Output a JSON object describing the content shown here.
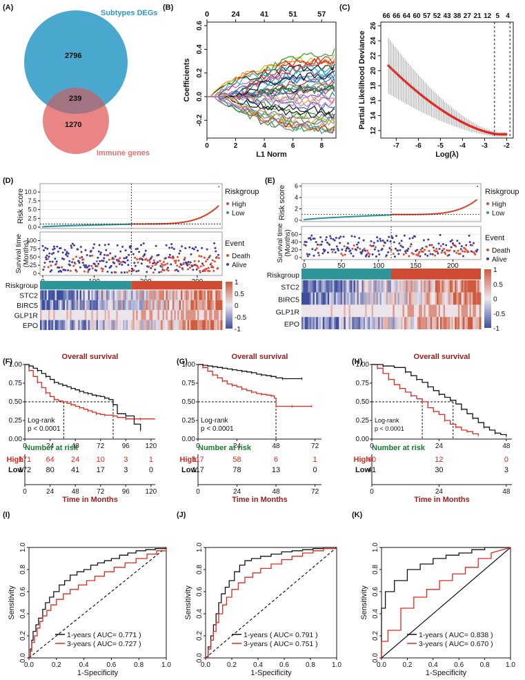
{
  "panel_letters": [
    "(A)",
    "(B)",
    "(C)",
    "(D)",
    "(E)",
    "(F)",
    "(G)",
    "(H)",
    "(I)",
    "(J)",
    "(K)"
  ],
  "venn": {
    "top_label": "Subtypes DEGs",
    "bottom_label": "Immune genes",
    "top_only": "2796",
    "overlap": "239",
    "bottom_only": "1270",
    "top_color": "#4aa8cf",
    "bottom_color": "#e98584",
    "overlap_color": "#a27380"
  },
  "colors": {
    "high": "#d14b33",
    "low": "#2e9599",
    "high_km": "#e0271f",
    "low_km": "#111111",
    "heading": "#9e1b1b",
    "risk_heading": "#1a7a2e",
    "death": "#e04a2f",
    "alive": "#3d3da0",
    "heat_high": "#cf5a3c",
    "heat_low": "#3e4f9e",
    "heat_mid": "#ece8ef",
    "ci": "#a6a6a6",
    "lambda_pt": "#e0271f"
  },
  "chart_data": [
    {
      "panel": "B",
      "type": "line",
      "title": "",
      "xlabel": "L1 Norm",
      "ylabel": "Coefficients",
      "xlim": [
        0,
        9
      ],
      "ylim": [
        -0.35,
        0.63
      ],
      "x_ticks": [
        "0",
        "2",
        "4",
        "6",
        "8"
      ],
      "y_ticks": [
        "-0.2",
        "0.0",
        "0.2",
        "0.4",
        "0.6"
      ],
      "top_ticks": [
        "0",
        "24",
        "41",
        "51",
        "57"
      ],
      "note": "LASSO coefficient paths (approximate, many variables)"
    },
    {
      "panel": "C",
      "type": "line",
      "xlabel": "Log(λ)",
      "ylabel": "Partial Likelihood Deviance",
      "xlim": [
        -7.7,
        -1.7
      ],
      "ylim": [
        11,
        26.5
      ],
      "x_ticks": [
        "-7",
        "-6",
        "-5",
        "-4",
        "-3",
        "-2"
      ],
      "y_ticks": [
        "12",
        "14",
        "16",
        "18",
        "20",
        "22",
        "24",
        "26"
      ],
      "top_ticks": [
        "66",
        "66",
        "64",
        "60",
        "57",
        "52",
        "43",
        "38",
        "27",
        "21",
        "12",
        "5",
        "4"
      ],
      "vlines": [
        -2.55,
        -1.85
      ],
      "note": "Cross-validation deviance with error bars (approximate)"
    },
    {
      "panel": "D",
      "type": "scatter",
      "risk_ylabel": "Risk score",
      "risk_yticks": [
        "0.0",
        "2.5",
        "5.0",
        "7.5",
        "10.0"
      ],
      "risk_ylim": [
        0,
        12
      ],
      "surv_ylabel": [
        "Survival time",
        "(Months)"
      ],
      "surv_yticks": [
        "0",
        "25",
        "50",
        "75",
        "100"
      ],
      "surv_ylim": [
        0,
        120
      ],
      "x_ticks": [
        "0",
        "100",
        "200",
        "300"
      ],
      "n": 343,
      "cutoff_index": 172,
      "cutoff_value": 0.9,
      "legend_risk_title": "Riskgroup",
      "legend_risk": [
        "High",
        "Low"
      ],
      "legend_event_title": "Event",
      "legend_event": [
        "Death",
        "Alive"
      ],
      "heatmap_rows": [
        "Riskgroup",
        "STC2",
        "BIRC5",
        "GLP1R",
        "EPO"
      ],
      "heat_scale": [
        "1",
        "0.5",
        "0",
        "-0.5",
        "-1"
      ]
    },
    {
      "panel": "E",
      "type": "scatter",
      "risk_ylabel": "Risk score",
      "risk_yticks": [
        "0",
        "2",
        "4",
        "6"
      ],
      "risk_ylim": [
        0,
        6.2
      ],
      "surv_ylabel": [
        "Survival time",
        "(Months)"
      ],
      "surv_yticks": [
        "0",
        "20",
        "40",
        "60"
      ],
      "surv_ylim": [
        0,
        75
      ],
      "x_ticks": [
        "0",
        "50",
        "100",
        "150",
        "200"
      ],
      "n": 234,
      "cutoff_index": 117,
      "cutoff_value": 1.0,
      "legend_risk_title": "Riskgroup",
      "legend_risk": [
        "High",
        "Low"
      ],
      "legend_event_title": "Event",
      "legend_event": [
        "Death",
        "Alive"
      ],
      "heatmap_rows": [
        "Riskgroup",
        "STC2",
        "BIRC5",
        "GLP1R",
        "EPO"
      ],
      "heat_scale": [
        "1",
        "0.5",
        "0",
        "-0.5",
        "-1"
      ]
    },
    {
      "panel": "F",
      "type": "line",
      "title": "Overall survival",
      "xlabel": "Time in Months",
      "xlim": [
        0,
        124
      ],
      "ylim": [
        0,
        1
      ],
      "x_ticks": [
        "0",
        "24",
        "48",
        "72",
        "96",
        "120"
      ],
      "y_ticks": [
        "0.00",
        "0.25",
        "0.50",
        "0.75",
        "1.00"
      ],
      "logrank": [
        "Log-rank",
        "p < 0.0001"
      ],
      "median_high": 37,
      "median_low": 84,
      "series": [
        {
          "name": "High",
          "x": [
            0,
            4,
            8,
            12,
            16,
            20,
            24,
            28,
            32,
            36,
            40,
            44,
            48,
            52,
            56,
            60,
            64,
            68,
            72,
            76,
            80,
            84,
            88,
            96,
            104,
            110,
            124
          ],
          "values": [
            1,
            0.92,
            0.84,
            0.76,
            0.69,
            0.62,
            0.57,
            0.53,
            0.51,
            0.5,
            0.48,
            0.46,
            0.44,
            0.42,
            0.4,
            0.38,
            0.36,
            0.34,
            0.33,
            0.32,
            0.32,
            0.31,
            0.29,
            0.27,
            0.27,
            0.27,
            0.27
          ]
        },
        {
          "name": "Low",
          "x": [
            0,
            4,
            8,
            12,
            16,
            20,
            24,
            28,
            32,
            36,
            40,
            44,
            48,
            52,
            56,
            60,
            64,
            68,
            72,
            76,
            80,
            84,
            88,
            96,
            104,
            110
          ],
          "values": [
            1,
            0.98,
            0.95,
            0.92,
            0.88,
            0.84,
            0.8,
            0.76,
            0.74,
            0.72,
            0.7,
            0.68,
            0.66,
            0.64,
            0.62,
            0.61,
            0.59,
            0.58,
            0.57,
            0.55,
            0.53,
            0.46,
            0.34,
            0.31,
            0.2,
            0.12
          ]
        }
      ],
      "risk_table_title": "Number at risk",
      "risk_table": {
        "High": [
          "171",
          "64",
          "24",
          "10",
          "3",
          "1"
        ],
        "Low": [
          "172",
          "80",
          "41",
          "17",
          "3",
          "0"
        ]
      }
    },
    {
      "panel": "G",
      "type": "line",
      "title": "Overall survival",
      "xlabel": "Time in Months",
      "xlim": [
        0,
        76
      ],
      "ylim": [
        0,
        1
      ],
      "x_ticks": [
        "0",
        "24",
        "48",
        "72"
      ],
      "y_ticks": [
        "0.00",
        "0.25",
        "0.50",
        "0.75",
        "1.00"
      ],
      "logrank": [
        "Log-rank",
        "p < 0.0001"
      ],
      "median_high": 48,
      "series": [
        {
          "name": "High",
          "x": [
            0,
            3,
            6,
            9,
            12,
            15,
            18,
            21,
            24,
            27,
            30,
            33,
            36,
            39,
            42,
            45,
            47,
            48,
            52,
            58,
            64,
            70
          ],
          "values": [
            1,
            0.96,
            0.91,
            0.86,
            0.82,
            0.78,
            0.74,
            0.72,
            0.7,
            0.67,
            0.65,
            0.63,
            0.61,
            0.6,
            0.59,
            0.58,
            0.55,
            0.44,
            0.44,
            0.44,
            0.44,
            0.44
          ]
        },
        {
          "name": "Low",
          "x": [
            0,
            3,
            6,
            9,
            12,
            15,
            18,
            21,
            24,
            27,
            30,
            33,
            36,
            39,
            42,
            45,
            48,
            52,
            58,
            64
          ],
          "values": [
            1,
            0.99,
            0.98,
            0.97,
            0.96,
            0.95,
            0.94,
            0.93,
            0.92,
            0.91,
            0.9,
            0.89,
            0.87,
            0.86,
            0.85,
            0.84,
            0.82,
            0.81,
            0.81,
            0.81
          ]
        }
      ],
      "risk_table_title": "Number at risk",
      "risk_table": {
        "High": [
          "117",
          "58",
          "6",
          "1"
        ],
        "Low": [
          "117",
          "78",
          "13",
          "0"
        ]
      }
    },
    {
      "panel": "H",
      "type": "line",
      "title": "Overall survival",
      "xlabel": "Time in Months",
      "xlim": [
        0,
        50
      ],
      "ylim": [
        0,
        1
      ],
      "x_ticks": [
        "0",
        "24",
        "48"
      ],
      "y_ticks": [
        "0.00",
        "0.25",
        "0.50",
        "0.75",
        "1.00"
      ],
      "logrank": [
        "Log-rank",
        "p < 0.0001"
      ],
      "median_high": 18,
      "median_low": 29,
      "series": [
        {
          "name": "High",
          "x": [
            0,
            2,
            4,
            6,
            8,
            10,
            12,
            14,
            16,
            18,
            20,
            22,
            24,
            26,
            28,
            30,
            32,
            34,
            36,
            38
          ],
          "values": [
            1,
            0.95,
            0.88,
            0.8,
            0.73,
            0.68,
            0.63,
            0.58,
            0.54,
            0.5,
            0.42,
            0.37,
            0.33,
            0.25,
            0.2,
            0.16,
            0.12,
            0.1,
            0.07,
            0.05
          ]
        },
        {
          "name": "Low",
          "x": [
            0,
            4,
            8,
            12,
            14,
            16,
            18,
            20,
            22,
            24,
            26,
            28,
            30,
            32,
            34,
            36,
            38,
            40,
            42,
            44,
            46,
            48
          ],
          "values": [
            1,
            0.98,
            0.96,
            0.9,
            0.85,
            0.8,
            0.76,
            0.7,
            0.65,
            0.6,
            0.56,
            0.52,
            0.47,
            0.4,
            0.34,
            0.28,
            0.22,
            0.16,
            0.12,
            0.08,
            0.06,
            0.04
          ]
        }
      ],
      "risk_table_title": "Number at risk",
      "risk_table": {
        "High": [
          "40",
          "12",
          "0"
        ],
        "Low": [
          "41",
          "30",
          "3"
        ]
      }
    },
    {
      "panel": "I",
      "type": "line",
      "xlabel": "1-Specificity",
      "ylabel": "Sensitivity",
      "xlim": [
        0,
        1
      ],
      "ylim": [
        0,
        1
      ],
      "x_ticks": [
        "0.0",
        "0.2",
        "0.4",
        "0.6",
        "0.8",
        "1.0"
      ],
      "y_ticks": [
        "0.0",
        "0.2",
        "0.4",
        "0.6",
        "0.8",
        "1.0"
      ],
      "series": [
        {
          "name": "1-years ( AUC= 0.771 )",
          "x": [
            0,
            0.01,
            0.02,
            0.03,
            0.05,
            0.07,
            0.1,
            0.12,
            0.15,
            0.18,
            0.22,
            0.26,
            0.3,
            0.35,
            0.4,
            0.45,
            0.5,
            0.55,
            0.6,
            0.66,
            0.72,
            0.78,
            0.85,
            0.92,
            1.0
          ],
          "values": [
            0,
            0.08,
            0.16,
            0.24,
            0.3,
            0.36,
            0.44,
            0.5,
            0.55,
            0.6,
            0.66,
            0.7,
            0.75,
            0.78,
            0.8,
            0.84,
            0.86,
            0.88,
            0.9,
            0.93,
            0.95,
            0.97,
            0.98,
            0.99,
            1.0
          ]
        },
        {
          "name": "3-years ( AUC= 0.727 )",
          "x": [
            0,
            0.01,
            0.02,
            0.04,
            0.06,
            0.08,
            0.1,
            0.13,
            0.16,
            0.2,
            0.25,
            0.3,
            0.36,
            0.42,
            0.48,
            0.55,
            0.62,
            0.7,
            0.78,
            0.86,
            0.93,
            1.0
          ],
          "values": [
            0,
            0.06,
            0.14,
            0.2,
            0.27,
            0.33,
            0.38,
            0.43,
            0.48,
            0.53,
            0.58,
            0.62,
            0.66,
            0.7,
            0.74,
            0.78,
            0.82,
            0.86,
            0.9,
            0.94,
            0.97,
            1.0
          ]
        }
      ]
    },
    {
      "panel": "J",
      "type": "line",
      "xlabel": "1-Specificity",
      "ylabel": "Sensitivity",
      "xlim": [
        0,
        1
      ],
      "ylim": [
        0,
        1
      ],
      "x_ticks": [
        "0.0",
        "0.2",
        "0.4",
        "0.6",
        "0.8",
        "1.0"
      ],
      "y_ticks": [
        "0.0",
        "0.2",
        "0.4",
        "0.6",
        "0.8",
        "1.0"
      ],
      "series": [
        {
          "name": "1-years  ( AUC= 0.791 )",
          "x": [
            0,
            0.02,
            0.04,
            0.06,
            0.08,
            0.1,
            0.12,
            0.15,
            0.18,
            0.22,
            0.26,
            0.3,
            0.35,
            0.42,
            0.5,
            0.58,
            0.66,
            0.74,
            0.82,
            0.9,
            1.0
          ],
          "values": [
            0,
            0.1,
            0.2,
            0.3,
            0.4,
            0.5,
            0.58,
            0.64,
            0.7,
            0.78,
            0.84,
            0.88,
            0.9,
            0.92,
            0.94,
            0.96,
            0.97,
            0.98,
            0.99,
            1.0,
            1.0
          ]
        },
        {
          "name": "3-years  ( AUC= 0.751 )",
          "x": [
            0,
            0.02,
            0.04,
            0.06,
            0.08,
            0.1,
            0.13,
            0.16,
            0.2,
            0.25,
            0.3,
            0.36,
            0.42,
            0.5,
            0.58,
            0.66,
            0.74,
            0.82,
            0.9,
            1.0
          ],
          "values": [
            0,
            0.08,
            0.16,
            0.24,
            0.32,
            0.4,
            0.48,
            0.55,
            0.62,
            0.68,
            0.73,
            0.77,
            0.81,
            0.85,
            0.89,
            0.92,
            0.95,
            0.97,
            0.99,
            1.0
          ]
        }
      ]
    },
    {
      "panel": "K",
      "type": "line",
      "xlabel": "1-Specificity",
      "ylabel": "Sensitivity",
      "xlim": [
        0,
        1
      ],
      "ylim": [
        0,
        1
      ],
      "x_ticks": [
        "0.0",
        "0.2",
        "0.4",
        "0.6",
        "0.8",
        "1.0"
      ],
      "y_ticks": [
        "0.0",
        "0.2",
        "0.4",
        "0.6",
        "0.8",
        "1.0"
      ],
      "series": [
        {
          "name": "1-years  ( AUC= 0.838 )",
          "x": [
            0,
            0,
            0.03,
            0.03,
            0.1,
            0.1,
            0.2,
            0.2,
            0.3,
            0.3,
            0.4,
            0.4,
            0.5,
            0.5,
            0.6,
            0.6,
            0.7,
            0.7,
            0.8,
            0.8,
            1.0
          ],
          "values": [
            0,
            0.45,
            0.45,
            0.6,
            0.6,
            0.7,
            0.7,
            0.8,
            0.8,
            0.85,
            0.85,
            0.9,
            0.9,
            0.93,
            0.93,
            0.95,
            0.95,
            0.98,
            0.98,
            1.0,
            1.0
          ]
        },
        {
          "name": "3-years  ( AUC= 0.670 )",
          "x": [
            0,
            0,
            0.05,
            0.05,
            0.15,
            0.15,
            0.25,
            0.25,
            0.35,
            0.35,
            0.45,
            0.45,
            0.55,
            0.55,
            0.65,
            0.65,
            0.75,
            0.75,
            0.85,
            0.85,
            1.0
          ],
          "values": [
            0,
            0.15,
            0.15,
            0.25,
            0.25,
            0.45,
            0.45,
            0.55,
            0.55,
            0.62,
            0.62,
            0.7,
            0.7,
            0.76,
            0.76,
            0.82,
            0.82,
            0.9,
            0.9,
            0.95,
            1.0
          ]
        }
      ]
    }
  ]
}
